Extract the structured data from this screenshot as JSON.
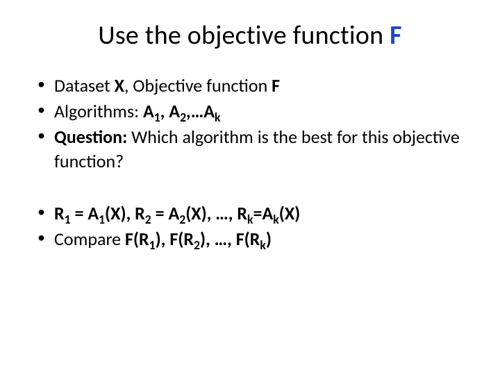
{
  "title": {
    "prefix": "Use the objective function ",
    "accent": "F",
    "accent_color": "#1f49c2"
  },
  "bullets_top": [
    {
      "parts": [
        {
          "t": "Dataset "
        },
        {
          "t": "X",
          "b": true
        },
        {
          "t": ", Objective function "
        },
        {
          "t": "F",
          "b": true
        }
      ]
    },
    {
      "parts": [
        {
          "t": "Algorithms: "
        },
        {
          "t": "A",
          "b": true
        },
        {
          "t": "1",
          "b": true,
          "sub": true
        },
        {
          "t": ", ",
          "b": true
        },
        {
          "t": "A",
          "b": true
        },
        {
          "t": "2",
          "b": true,
          "sub": true
        },
        {
          "t": ",…A",
          "b": true
        },
        {
          "t": "k",
          "b": true,
          "sub": true
        }
      ]
    },
    {
      "parts": [
        {
          "t": "Question:",
          "b": true
        },
        {
          "t": " Which algorithm is the best for this objective function?"
        }
      ]
    }
  ],
  "bullets_bottom": [
    {
      "parts": [
        {
          "t": "R",
          "b": true
        },
        {
          "t": "1",
          "b": true,
          "sub": true
        },
        {
          "t": " = A",
          "b": true
        },
        {
          "t": "1",
          "b": true,
          "sub": true
        },
        {
          "t": "(X), R",
          "b": true
        },
        {
          "t": "2",
          "b": true,
          "sub": true
        },
        {
          "t": " = A",
          "b": true
        },
        {
          "t": "2",
          "b": true,
          "sub": true
        },
        {
          "t": "(X), …, R",
          "b": true
        },
        {
          "t": "k",
          "b": true,
          "sub": true
        },
        {
          "t": "=A",
          "b": true
        },
        {
          "t": "k",
          "b": true,
          "sub": true
        },
        {
          "t": "(X)",
          "b": true
        }
      ]
    },
    {
      "parts": [
        {
          "t": "Compare "
        },
        {
          "t": "F(R",
          "b": true
        },
        {
          "t": "1",
          "b": true,
          "sub": true
        },
        {
          "t": "), F(R",
          "b": true
        },
        {
          "t": "2",
          "b": true,
          "sub": true
        },
        {
          "t": "), …, F(R",
          "b": true
        },
        {
          "t": "k",
          "b": true,
          "sub": true
        },
        {
          "t": ")",
          "b": true
        }
      ]
    }
  ],
  "colors": {
    "background": "#ffffff",
    "text": "#000000",
    "accent": "#1f49c2"
  },
  "typography": {
    "title_fontsize": 38,
    "body_fontsize": 26,
    "font_family": "Calibri"
  }
}
